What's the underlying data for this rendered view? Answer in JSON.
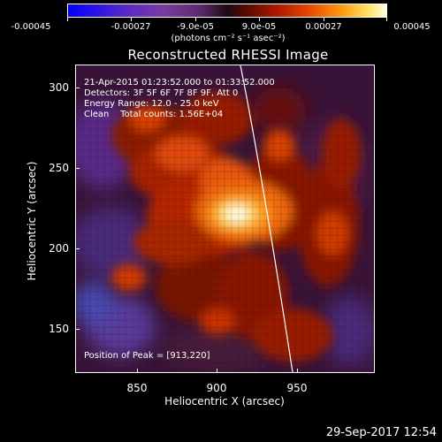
{
  "colorbar": {
    "tick_labels": [
      "-0.00045",
      "-0.00027",
      "-9.0e-05",
      "9.0e-05",
      "0.00027",
      "0.00045"
    ],
    "units": "(photons cm⁻² s⁻¹ asec⁻²)",
    "colors": [
      "#0000ff",
      "#7a3aa0",
      "#1a0a14",
      "#b01800",
      "#ff9a10",
      "#ffffe0"
    ]
  },
  "title": "Reconstructed RHESSI Image",
  "info": {
    "time_range": "21-Apr-2015 01:23:52.000 to 01:33:52.000",
    "detectors": "Detectors: 3F 5F 6F 7F 8F 9F, Att 0",
    "energy_range": "Energy Range: 12.0 - 25.0 keV",
    "clean_counts": "Clean    Total counts: 1.56E+04",
    "peak": "Position of Peak = [913,220]"
  },
  "axes": {
    "ylabel": "Heliocentric Y (arcsec)",
    "xlabel": "Heliocentric X (arcsec)",
    "yticks": [
      "300",
      "250",
      "200",
      "150"
    ],
    "xticks": [
      "850",
      "900",
      "950"
    ]
  },
  "footer": {
    "datestamp": "29-Sep-2017 12:54"
  }
}
